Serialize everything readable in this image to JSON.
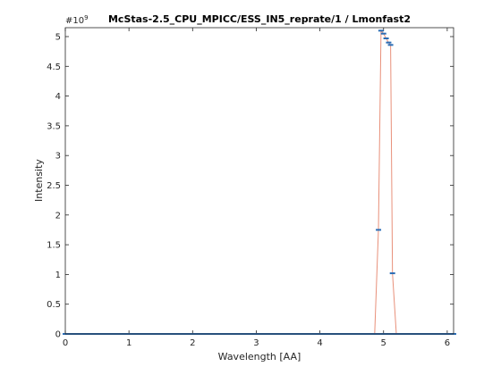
{
  "chart_data": {
    "type": "line",
    "title": "McStas-2.5_CPU_MPICC/ESS_IN5_reprate/1 / Lmonfast2",
    "xlabel": "Wavelength [AA]",
    "ylabel": "Intensity",
    "y_exponent_label": "#10",
    "y_exponent_power": "9",
    "xlim": [
      0,
      6.1
    ],
    "ylim": [
      0,
      5.15
    ],
    "y_scale_factor": 1000000000,
    "x_ticks": [
      "0",
      "1",
      "2",
      "3",
      "4",
      "5",
      "6"
    ],
    "y_ticks": [
      "0",
      "0.5",
      "1",
      "1.5",
      "2",
      "2.5",
      "3",
      "3.5",
      "4",
      "4.5",
      "5"
    ],
    "grid": false,
    "colors": {
      "fit_line": "#e8907a",
      "data_markers": "#2a6db5",
      "axes": "#262626"
    },
    "series": [
      {
        "x": [
          0,
          0.3,
          0.6,
          0.9,
          1.2,
          1.5,
          1.8,
          2.1,
          2.4,
          2.7,
          3.0,
          3.3,
          3.6,
          3.9,
          4.2,
          4.5,
          4.8,
          4.86,
          4.92,
          4.96,
          5.0,
          5.04,
          5.08,
          5.11,
          5.14,
          5.2,
          5.5,
          5.8,
          6.1
        ],
        "y": [
          0,
          0,
          0,
          0,
          0,
          0,
          0,
          0,
          0,
          0,
          0,
          0,
          0,
          0,
          0,
          0,
          0,
          0,
          1.75,
          5.1,
          5.05,
          4.97,
          4.9,
          4.86,
          1.02,
          0,
          0,
          0,
          0
        ]
      }
    ]
  }
}
